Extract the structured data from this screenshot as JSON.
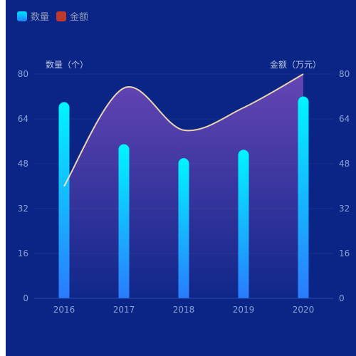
{
  "legend": [
    {
      "label": "数量",
      "color": "#1fb9ff"
    },
    {
      "label": "金额",
      "color": "#c0392b"
    }
  ],
  "chart_data": {
    "type": "bar",
    "categories": [
      "2016",
      "2017",
      "2018",
      "2019",
      "2020"
    ],
    "series": [
      {
        "name": "数量",
        "type": "bar",
        "axis": "left",
        "values": [
          70,
          55,
          50,
          53,
          72
        ]
      },
      {
        "name": "金额",
        "type": "line",
        "axis": "right",
        "smooth": true,
        "area": true,
        "values": [
          40,
          75,
          60,
          68,
          80
        ]
      }
    ],
    "y_left": {
      "label": "数量（个）",
      "min": 0,
      "max": 80,
      "ticks": [
        0,
        16,
        32,
        48,
        64,
        80
      ]
    },
    "y_right": {
      "label": "金额（万元）",
      "min": 0,
      "max": 80,
      "ticks": [
        0,
        16,
        32,
        48,
        64,
        80
      ]
    },
    "grid": true,
    "legend_position": "top-left",
    "colors": {
      "background": "#0a2586",
      "bar_top": "#00f5ff",
      "bar_bottom": "#2a7bff",
      "line": "#ffe6b0",
      "area_top": "#6a47b8",
      "grid": "#17348f",
      "tick_text": "#8aa1d6"
    }
  }
}
